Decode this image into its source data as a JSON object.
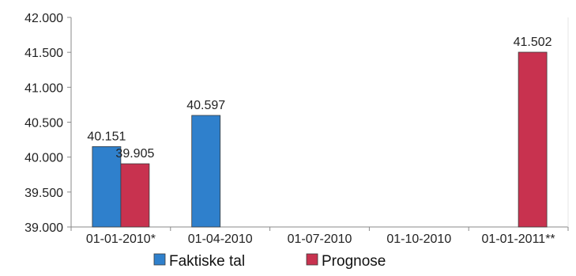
{
  "chart_data": {
    "type": "bar",
    "categories": [
      "01-01-2010*",
      "01-04-2010",
      "01-07-2010",
      "01-10-2010",
      "01-01-2011**"
    ],
    "series": [
      {
        "name": "Faktiske tal",
        "color": "#2f80cc",
        "values": [
          40151,
          40597,
          null,
          null,
          null
        ]
      },
      {
        "name": "Prognose",
        "color": "#c8324f",
        "values": [
          39905,
          null,
          null,
          null,
          41502
        ]
      }
    ],
    "data_labels": [
      {
        "category": "01-01-2010*",
        "series": "Faktiske tal",
        "text": "40.151"
      },
      {
        "category": "01-01-2010*",
        "series": "Prognose",
        "text": "39.905"
      },
      {
        "category": "01-04-2010",
        "series": "Faktiske tal",
        "text": "40.597"
      },
      {
        "category": "01-01-2011**",
        "series": "Prognose",
        "text": "41.502"
      }
    ],
    "yticks": [
      "39.000",
      "39.500",
      "40.000",
      "40.500",
      "41.000",
      "41.500",
      "42.000"
    ],
    "ytick_values": [
      39000,
      39500,
      40000,
      40500,
      41000,
      41500,
      42000
    ],
    "ylim": [
      39000,
      42000
    ],
    "title": "",
    "xlabel": "",
    "ylabel": "",
    "grid": false,
    "legend_position": "bottom"
  }
}
